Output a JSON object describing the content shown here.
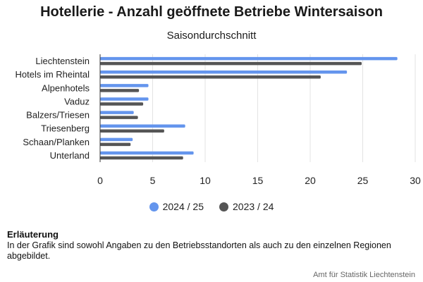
{
  "chart_data": {
    "type": "bar",
    "orientation": "horizontal",
    "title": "Hotellerie - Anzahl geöffnete Betriebe Wintersaison",
    "subtitle": "Saisondurchschnitt",
    "categories": [
      "Liechtenstein",
      "Hotels im Rheintal",
      "Alpenhotels",
      "Vaduz",
      "Balzers/Triesen",
      "Triesenberg",
      "Schaan/Planken",
      "Unterland"
    ],
    "series": [
      {
        "name": "2024 / 25",
        "color": "#6495ed",
        "values": [
          28.3,
          23.5,
          4.6,
          4.6,
          3.2,
          8.1,
          3.1,
          8.9
        ]
      },
      {
        "name": "2023 / 24",
        "color": "#555555",
        "values": [
          24.9,
          21.0,
          3.7,
          4.1,
          3.6,
          6.1,
          2.9,
          7.9
        ]
      }
    ],
    "xlim": [
      0,
      30
    ],
    "xticks": [
      0,
      5,
      10,
      15,
      20,
      25,
      30
    ],
    "grid": true,
    "legend_position": "bottom"
  },
  "note": {
    "heading": "Erläuterung",
    "text": "In der Grafik sind sowohl Angaben zu den Betriebsstandorten als auch zu den einzelnen Regionen abgebildet."
  },
  "source": "Amt für Statistik Liechtenstein"
}
